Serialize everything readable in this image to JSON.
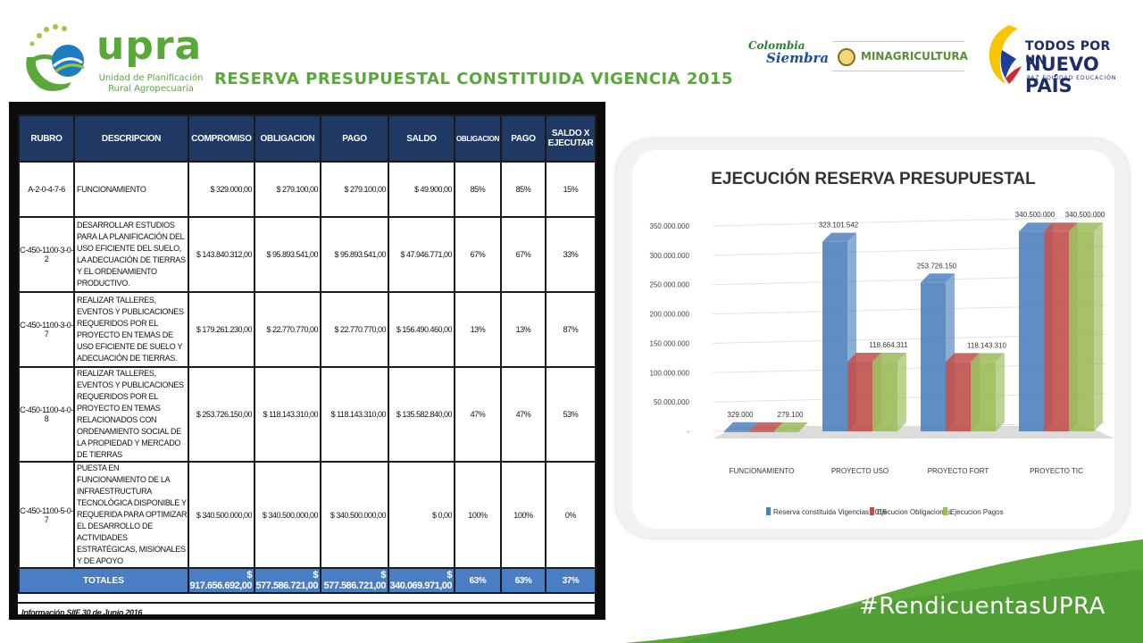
{
  "header": {
    "logo_word": "upra",
    "logo_sub": "Unidad de Planificación Rural Agropecuaria",
    "title": "RESERVA PRESUPUESTAL CONSTITUIDA VIGENCIA 2015",
    "colombia_siembra_1": "Colombia",
    "colombia_siembra_2": "Siembra",
    "minagri": "MINAGRICULTURA",
    "todos_1": "TODOS POR UN",
    "todos_2": "NUEVO PAÍS",
    "todos_3": "PAZ  EQUIDAD  EDUCACIÓN"
  },
  "table": {
    "headers": [
      "RUBRO",
      "DESCRIPCION",
      "COMPROMISO",
      "OBLIGACION",
      "PAGO",
      "SALDO",
      "OBLIGACION",
      "PAGO",
      "SALDO X EJECUTAR"
    ],
    "rows": [
      {
        "rubro": "A-2-0-4-7-6",
        "desc": "FUNCIONAMIENTO",
        "compromiso": "$ 329.000,00",
        "obligacion": "$ 279.100,00",
        "pago": "$ 279.100,00",
        "saldo": "$ 49.900,00",
        "pct_obligacion": "85%",
        "pct_pago": "85%",
        "pct_saldo": "15%"
      },
      {
        "rubro": "C-450-1100-3-0-2",
        "desc": "DESARROLLAR ESTUDIOS PARA LA PLANIFICACIÓN DEL USO EFICIENTE DEL SUELO, LA ADECUACIÓN DE TIERRAS Y EL ORDENAMIENTO PRODUCTIVO.",
        "compromiso": "$ 143.840.312,00",
        "obligacion": "$ 95.893.541,00",
        "pago": "$ 95.893.541,00",
        "saldo": "$ 47.946.771,00",
        "pct_obligacion": "67%",
        "pct_pago": "67%",
        "pct_saldo": "33%"
      },
      {
        "rubro": "C-450-1100-3-0-7",
        "desc": "REALIZAR TALLERES, EVENTOS Y PUBLICACIONES REQUERIDOS POR EL PROYECTO EN TEMAS DE USO EFICIENTE DE SUELO Y ADECUACIÓN DE TIERRAS.",
        "compromiso": "$ 179.261.230,00",
        "obligacion": "$ 22.770.770,00",
        "pago": "$ 22.770.770,00",
        "saldo": "$ 156.490.460,00",
        "pct_obligacion": "13%",
        "pct_pago": "13%",
        "pct_saldo": "87%"
      },
      {
        "rubro": "C-450-1100-4-0-8",
        "desc": "REALIZAR TALLERES, EVENTOS Y PUBLICACIONES REQUERIDOS POR EL PROYECTO EN TEMAS RELACIONADOS CON ORDENAMIENTO SOCIAL DE LA PROPIEDAD Y MERCADO DE TIERRAS",
        "compromiso": "$ 253.726.150,00",
        "obligacion": "$ 118.143.310,00",
        "pago": "$ 118.143.310,00",
        "saldo": "$ 135.582.840,00",
        "pct_obligacion": "47%",
        "pct_pago": "47%",
        "pct_saldo": "53%"
      },
      {
        "rubro": "C-450-1100-5-0-7",
        "desc": "PUESTA EN FUNCIONAMIENTO DE LA INFRAESTRUCTURA TECNOLÓGICA DISPONIBLE Y REQUERIDA PARA OPTIMIZAR EL DESARROLLO DE ACTIVIDADES ESTRATÉGICAS, MISIONALES Y DE APOYO",
        "compromiso": "$ 340.500.000,00",
        "obligacion": "$ 340.500.000,00",
        "pago": "$ 340.500.000,00",
        "saldo": "$ 0,00",
        "pct_obligacion": "100%",
        "pct_pago": "100%",
        "pct_saldo": "0%"
      }
    ],
    "totals": {
      "label": "TOTALES",
      "compromiso": "$ 917.656.692,00",
      "obligacion": "$ 577.586.721,00",
      "pago": "$ 577.586.721,00",
      "saldo": "$ 340.069.971,00",
      "pct_obligacion": "63%",
      "pct_pago": "63%",
      "pct_saldo": "37%"
    },
    "footnote": "Información SIIF 30 de Junio 2016"
  },
  "chart_data": {
    "type": "bar",
    "title": "EJECUCIÓN RESERVA PRESUPUESTAL",
    "categories": [
      "FUNCIONAMIENTO",
      "PROYECTO USO",
      "PROYECTO FORT",
      "PROYECTO TIC"
    ],
    "series": [
      {
        "name": "Reserva constituida Vigencias 2015",
        "values": [
          329000,
          323101542,
          253726150,
          340500000
        ],
        "color": "#4f81bd"
      },
      {
        "name": "Ejecucion Obligaciones",
        "values": [
          279100,
          118664311,
          118143310,
          340500000
        ],
        "color": "#c0504d"
      },
      {
        "name": "Ejecucion Pagos",
        "values": [
          279100,
          118664311,
          118143310,
          340500000
        ],
        "color": "#9bbb59"
      }
    ],
    "data_labels": [
      {
        "category": 0,
        "series": 0,
        "text": "329.000"
      },
      {
        "category": 0,
        "series": 2,
        "text": "279.100"
      },
      {
        "category": 1,
        "series": 0,
        "text": "323.101.542"
      },
      {
        "category": 1,
        "series": 2,
        "text": "118.664.311"
      },
      {
        "category": 2,
        "series": 0,
        "text": "253.726.150"
      },
      {
        "category": 2,
        "series": 2,
        "text": "118.143.310"
      },
      {
        "category": 3,
        "series": 0,
        "text": "340.500.000"
      },
      {
        "category": 3,
        "series": 2,
        "text": "340.500.000"
      }
    ],
    "yticks": [
      "-",
      "50.000.000",
      "100.000.000",
      "150.000.000",
      "200.000.000",
      "250.000.000",
      "300.000.000",
      "350.000.000"
    ],
    "ylim": [
      0,
      350000000
    ],
    "legend_position": "bottom"
  },
  "footer": {
    "hashtag": "#RendicuentasUPRA"
  },
  "colors": {
    "brand_green": "#5aa73a",
    "table_header": "#1f3864",
    "totals_row": "#4a7ec4"
  }
}
